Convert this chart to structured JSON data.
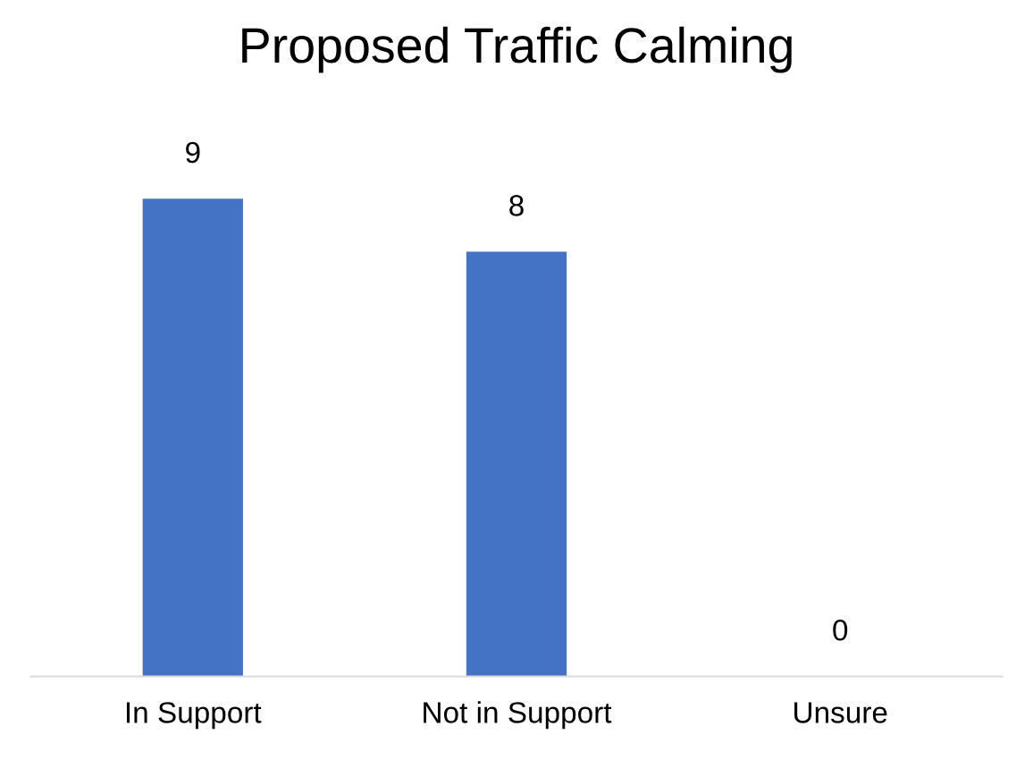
{
  "chart_data": {
    "type": "bar",
    "title": "Proposed Traffic Calming",
    "categories": [
      "In Support",
      "Not in Support",
      "Unsure"
    ],
    "values": [
      9,
      8,
      0
    ],
    "color": "#4472c4",
    "data_labels": true,
    "grid": false,
    "legend": false
  }
}
